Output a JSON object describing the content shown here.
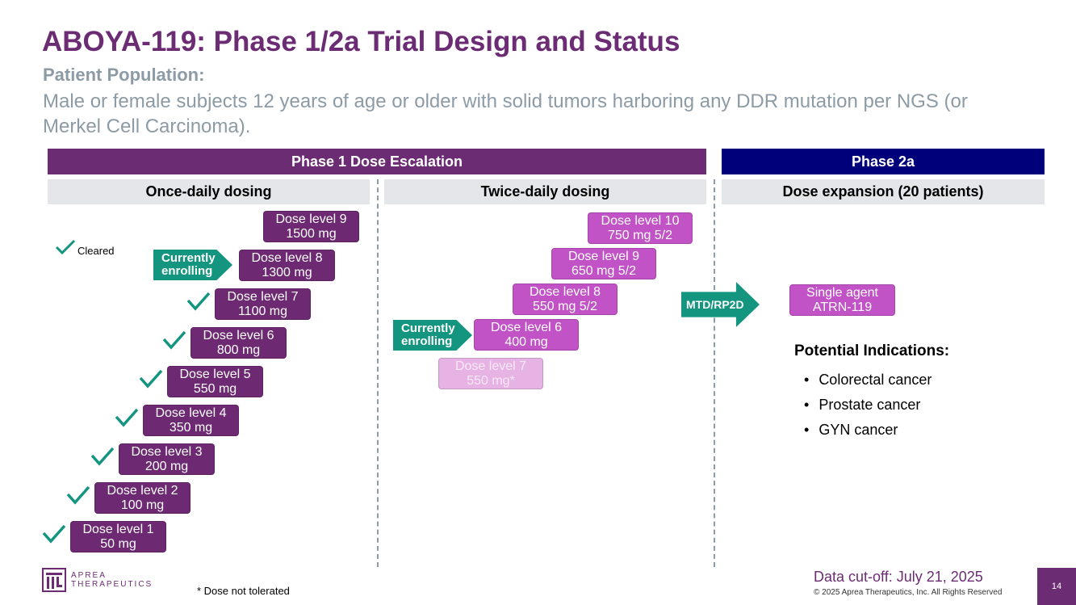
{
  "title": "ABOYA-119: Phase 1/2a Trial Design and Status",
  "population_label": "Patient Population:",
  "population_text": "Male or female subjects 12 years of age or older with solid tumors harboring any DDR mutation per NGS (or Merkel Cell Carcinoma).",
  "phase1_label": "Phase 1 Dose Escalation",
  "phase2_label": "Phase 2a",
  "once_daily_label": "Once-daily dosing",
  "twice_daily_label": "Twice-daily dosing",
  "expansion_label": "Dose expansion (20 patients)",
  "cleared_label": "Cleared",
  "enrolling_line1": "Currently",
  "enrolling_line2": "enrolling",
  "once_daily": [
    {
      "level": "Dose level 1",
      "dose": "50 mg"
    },
    {
      "level": "Dose level 2",
      "dose": "100 mg"
    },
    {
      "level": "Dose level 3",
      "dose": "200 mg"
    },
    {
      "level": "Dose level 4",
      "dose": "350 mg"
    },
    {
      "level": "Dose level 5",
      "dose": "550 mg"
    },
    {
      "level": "Dose level 6",
      "dose": "800 mg"
    },
    {
      "level": "Dose level 7",
      "dose": "1100 mg"
    },
    {
      "level": "Dose level 8",
      "dose": "1300 mg"
    },
    {
      "level": "Dose level 9",
      "dose": "1500 mg"
    }
  ],
  "twice_daily": [
    {
      "level": "Dose level 10",
      "dose": "750 mg 5/2"
    },
    {
      "level": "Dose level 9",
      "dose": "650 mg 5/2"
    },
    {
      "level": "Dose level 8",
      "dose": "550 mg 5/2"
    },
    {
      "level": "Dose level 6",
      "dose": "400 mg"
    },
    {
      "level": "Dose level 7",
      "dose": "550 mg*"
    }
  ],
  "mtd_label": "MTD/RP2D",
  "single_agent_line1": "Single agent",
  "single_agent_line2": "ATRN-119",
  "indications_title": "Potential Indications:",
  "indications": [
    "Colorectal cancer",
    "Prostate cancer",
    "GYN cancer"
  ],
  "footnote": "* Dose not tolerated",
  "cutoff": "Data cut-off: July 21, 2025",
  "copyright": "© 2025 Aprea Therapeutics, Inc. All Rights Reserved",
  "page_number": "14",
  "logo_line1": "APREA",
  "logo_line2": "THERAPEUTICS",
  "colors": {
    "brand_purple": "#6b2c74",
    "phase2_navy": "#00007a",
    "teal": "#14957f",
    "dose_mid": "#c153c6",
    "dose_light": "#e6b3e4"
  }
}
